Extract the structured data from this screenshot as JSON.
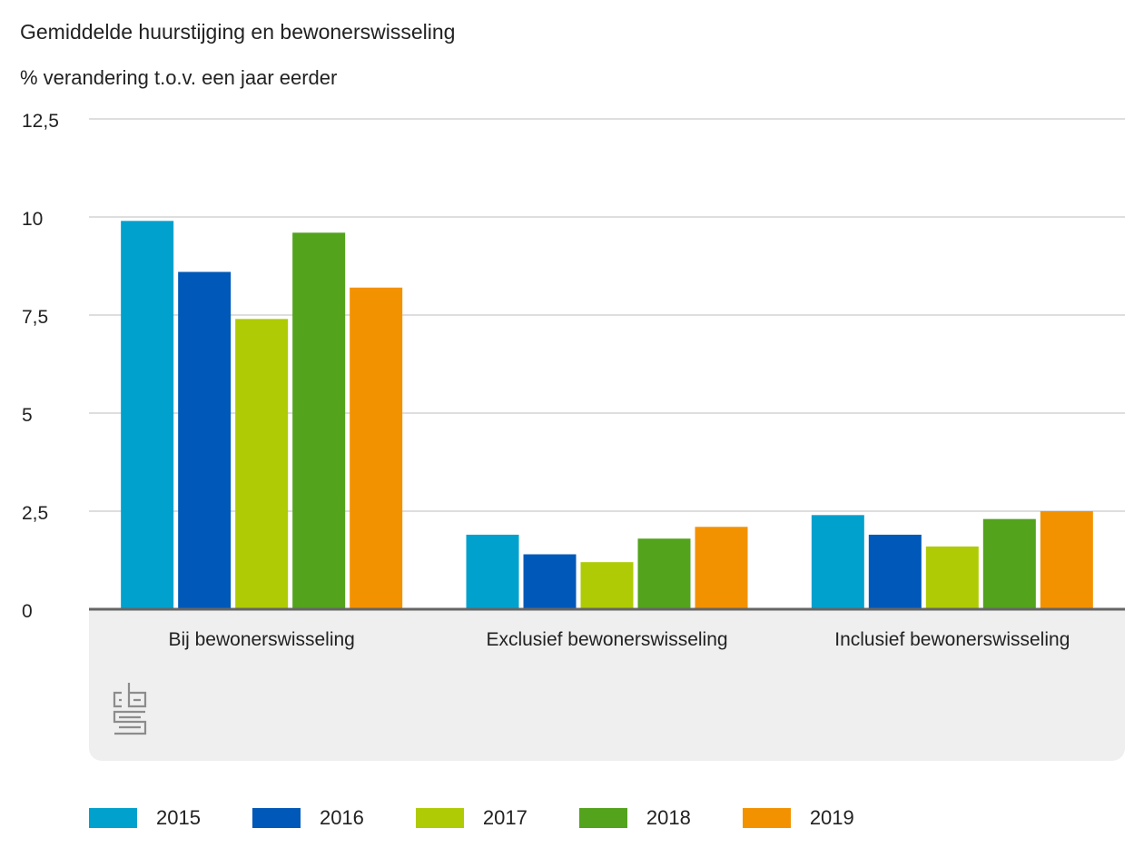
{
  "chart_data": {
    "type": "bar",
    "title": "Gemiddelde huurstijging en bewonerswisseling",
    "subtitle": "% verandering t.o.v. een jaar eerder",
    "xlabel": "",
    "ylabel": "% verandering t.o.v. een jaar eerder",
    "categories": [
      "Bij bewonerswisseling",
      "Exclusief bewonerswisseling",
      "Inclusief bewonerswisseling"
    ],
    "series": [
      {
        "name": "2015",
        "color": "#00a1cd",
        "values": [
          9.9,
          1.9,
          2.4
        ]
      },
      {
        "name": "2016",
        "color": "#0058b8",
        "values": [
          8.6,
          1.4,
          1.9
        ]
      },
      {
        "name": "2017",
        "color": "#afcb05",
        "values": [
          7.4,
          1.2,
          1.6
        ]
      },
      {
        "name": "2018",
        "color": "#53a31d",
        "values": [
          9.6,
          1.8,
          2.3
        ]
      },
      {
        "name": "2019",
        "color": "#f39200",
        "values": [
          8.2,
          2.1,
          2.5
        ]
      }
    ],
    "ylim": [
      0,
      12.5
    ],
    "yticks": [
      0,
      2.5,
      5,
      7.5,
      10,
      12.5
    ],
    "ytick_labels": [
      "0",
      "2,5",
      "5",
      "7,5",
      "10",
      "12,5"
    ],
    "grid": true,
    "legend_position": "bottom-left"
  },
  "branding": {
    "logo_text": "cbs"
  }
}
